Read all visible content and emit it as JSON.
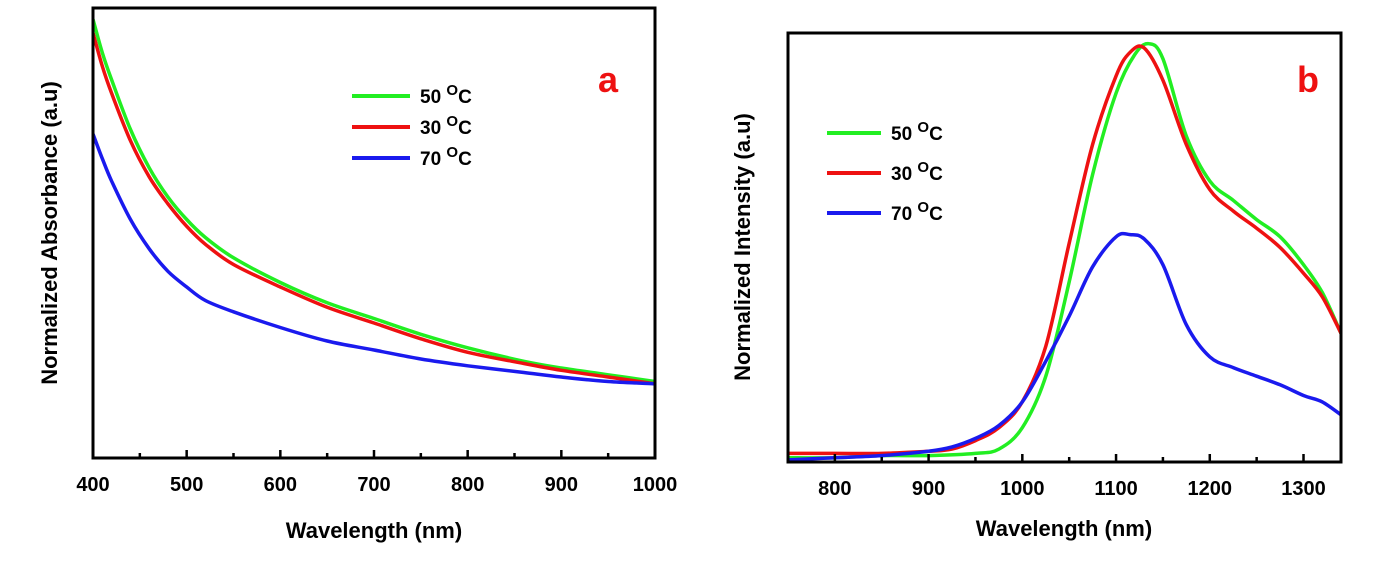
{
  "chart_data": [
    {
      "panel": "a",
      "type": "line",
      "xlabel": "Wavelength (nm)",
      "ylabel": "Normalized Absorbance (a.u)",
      "xlim": [
        400,
        1000
      ],
      "ylim": [
        0.0,
        1.0
      ],
      "xticks": [
        400,
        500,
        600,
        700,
        800,
        900,
        1000
      ],
      "yticks_shown": false,
      "grid": false,
      "legend_position": "top-right",
      "series": [
        {
          "name": "50 ^O C",
          "label_num": "50",
          "label_sup": "O",
          "label_unit": "C",
          "color": "#22ee22",
          "x": [
            400,
            410,
            420,
            440,
            460,
            480,
            500,
            520,
            550,
            600,
            650,
            700,
            750,
            800,
            860,
            900,
            950,
            1000
          ],
          "y": [
            0.975,
            0.9,
            0.84,
            0.73,
            0.645,
            0.58,
            0.53,
            0.49,
            0.445,
            0.39,
            0.345,
            0.31,
            0.275,
            0.245,
            0.215,
            0.2,
            0.185,
            0.17
          ]
        },
        {
          "name": "30 ^O C",
          "label_num": "30",
          "label_sup": "O",
          "label_unit": "C",
          "color": "#ee1111",
          "x": [
            400,
            410,
            420,
            440,
            460,
            480,
            500,
            520,
            550,
            600,
            650,
            700,
            750,
            800,
            860,
            900,
            950,
            1000
          ],
          "y": [
            0.945,
            0.87,
            0.81,
            0.705,
            0.625,
            0.565,
            0.515,
            0.475,
            0.43,
            0.38,
            0.335,
            0.3,
            0.265,
            0.235,
            0.21,
            0.195,
            0.18,
            0.165
          ]
        },
        {
          "name": "70 ^O C",
          "label_num": "70",
          "label_sup": "O",
          "label_unit": "C",
          "color": "#1a1aee",
          "x": [
            400,
            410,
            420,
            440,
            460,
            480,
            500,
            520,
            550,
            600,
            650,
            700,
            750,
            800,
            860,
            900,
            950,
            1000
          ],
          "y": [
            0.72,
            0.665,
            0.615,
            0.53,
            0.465,
            0.415,
            0.38,
            0.35,
            0.325,
            0.29,
            0.26,
            0.24,
            0.22,
            0.205,
            0.19,
            0.18,
            0.17,
            0.165
          ]
        }
      ],
      "annotation": "a"
    },
    {
      "panel": "b",
      "type": "line",
      "xlabel": "Wavelength (nm)",
      "ylabel": "Normalized Intensity (a.u)",
      "xlim": [
        750,
        1340
      ],
      "ylim": [
        0.0,
        1.0
      ],
      "xticks": [
        800,
        900,
        1000,
        1100,
        1200,
        1300
      ],
      "yticks_shown": false,
      "grid": false,
      "legend_position": "top-left",
      "series": [
        {
          "name": "50 ^O C",
          "label_num": "50",
          "label_sup": "O",
          "label_unit": "C",
          "color": "#22ee22",
          "x": [
            750,
            800,
            850,
            900,
            950,
            975,
            1000,
            1025,
            1050,
            1075,
            1100,
            1120,
            1135,
            1150,
            1175,
            1200,
            1225,
            1250,
            1275,
            1300,
            1320,
            1340
          ],
          "y": [
            0.01,
            0.01,
            0.015,
            0.015,
            0.02,
            0.03,
            0.08,
            0.2,
            0.42,
            0.67,
            0.86,
            0.95,
            0.975,
            0.94,
            0.76,
            0.655,
            0.61,
            0.565,
            0.525,
            0.46,
            0.395,
            0.3
          ]
        },
        {
          "name": "30 ^O C",
          "label_num": "30",
          "label_sup": "O",
          "label_unit": "C",
          "color": "#ee1111",
          "x": [
            750,
            800,
            850,
            900,
            925,
            950,
            975,
            1000,
            1025,
            1050,
            1075,
            1100,
            1115,
            1130,
            1150,
            1175,
            1200,
            1225,
            1250,
            1275,
            1300,
            1320,
            1340
          ],
          "y": [
            0.02,
            0.02,
            0.02,
            0.025,
            0.03,
            0.05,
            0.08,
            0.14,
            0.27,
            0.51,
            0.74,
            0.9,
            0.955,
            0.965,
            0.89,
            0.74,
            0.635,
            0.585,
            0.545,
            0.5,
            0.44,
            0.385,
            0.3
          ]
        },
        {
          "name": "70 ^O C",
          "label_num": "70",
          "label_sup": "O",
          "label_unit": "C",
          "color": "#1a1aee",
          "x": [
            750,
            800,
            850,
            900,
            925,
            950,
            975,
            1000,
            1025,
            1050,
            1075,
            1100,
            1115,
            1130,
            1150,
            1175,
            1200,
            1225,
            1250,
            1275,
            1300,
            1320,
            1340
          ],
          "y": [
            0.005,
            0.01,
            0.015,
            0.025,
            0.035,
            0.055,
            0.085,
            0.14,
            0.235,
            0.34,
            0.455,
            0.525,
            0.53,
            0.52,
            0.46,
            0.32,
            0.245,
            0.22,
            0.2,
            0.18,
            0.155,
            0.14,
            0.11
          ]
        }
      ],
      "annotation": "b"
    }
  ],
  "colors": {
    "annotation": "#ee1111",
    "axis": "#000000"
  }
}
